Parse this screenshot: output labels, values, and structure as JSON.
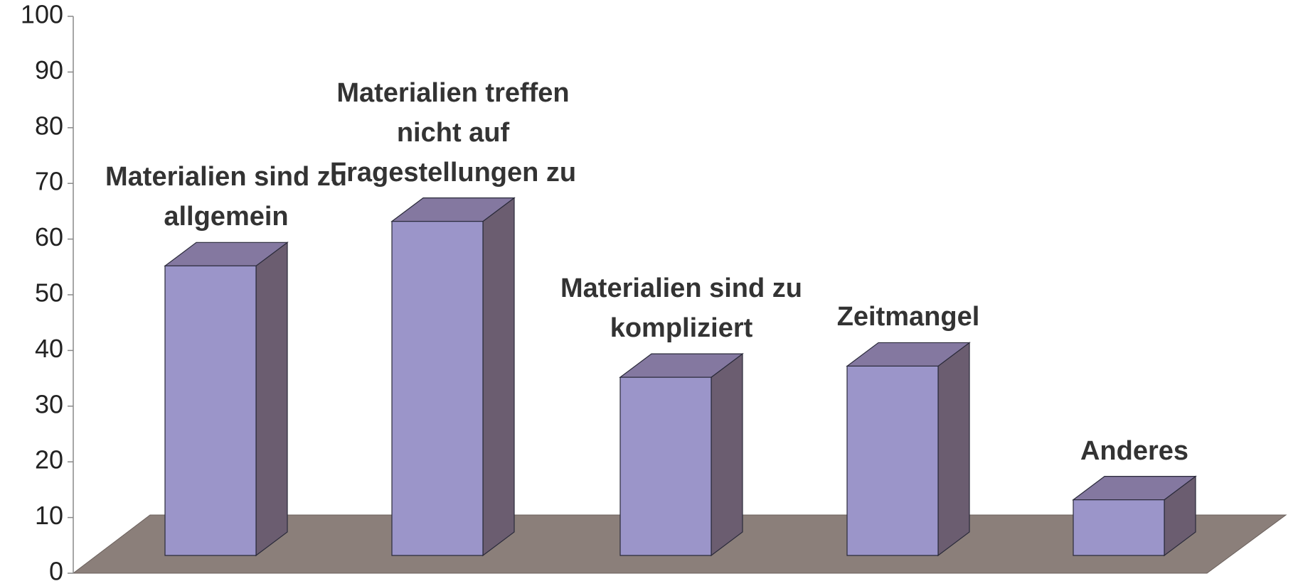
{
  "chart_data": {
    "type": "bar3d",
    "categories": [
      "Materialien sind zu allgemein",
      "Materialien treffen nicht auf Fragestellungen zu",
      "Materialien sind zu kompliziert",
      "Zeitmangel",
      "Anderes"
    ],
    "values": [
      52,
      60,
      32,
      34,
      10
    ],
    "color": "#9b95c9",
    "ylim": [
      0,
      100
    ],
    "yticks": [
      0,
      10,
      20,
      30,
      40,
      50,
      60,
      70,
      80,
      90,
      100
    ]
  }
}
